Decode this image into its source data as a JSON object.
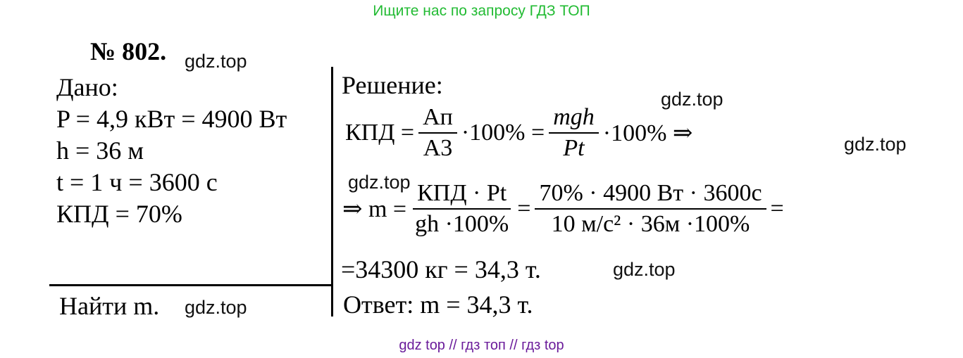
{
  "banner": "Ищите нас по запросу ГДЗ ТОП",
  "footer": "gdz top  //  гдз топ  //  гдз top",
  "watermark": "gdz.top",
  "problem": {
    "number": "№ 802."
  },
  "given": {
    "heading": "Дано:",
    "lines": [
      "P = 4,9 кВт = 4900 Вт",
      "h = 36 м",
      "t = 1 ч = 3600 с",
      "КПД = 70%"
    ],
    "find": "Найти m."
  },
  "solution": {
    "heading": "Решение:",
    "f1_lhs": "КПД =",
    "f1_num1": "Aп",
    "f1_den1": "A3",
    "f1_mid": "·100% =",
    "f1_num2": "mgh",
    "f1_den2": "Pt",
    "f1_tail": "·100% ⇒",
    "f2_lhs": "⇒ m =",
    "f2_num1": "КПД · Pt",
    "f2_den1": "gh ·100%",
    "f2_num2": "70% · 4900 Вт · 3600с",
    "f2_den2": "10 м/с² · 36м ·100%",
    "result": "=34300 кг = 34,3 т.",
    "answer": "Ответ: m = 34,3 т."
  }
}
